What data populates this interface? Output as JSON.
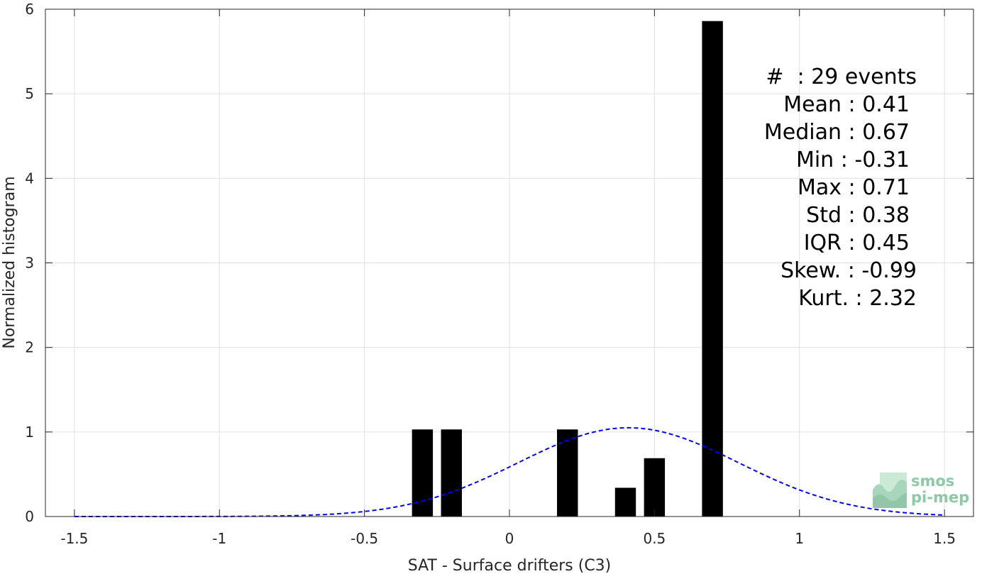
{
  "chart_data": {
    "type": "bar",
    "xlabel": "SAT - Surface drifters (C3)",
    "ylabel": "Normalized histogram",
    "xlim": [
      -1.6,
      1.6
    ],
    "ylim": [
      0,
      6
    ],
    "xticks": [
      -1.5,
      -1,
      -0.5,
      0,
      0.5,
      1,
      1.5
    ],
    "xtick_labels": [
      "-1.5",
      "-1",
      "-0.5",
      "0",
      "0.5",
      "1",
      "1.5"
    ],
    "yticks": [
      0,
      1,
      2,
      3,
      4,
      5,
      6
    ],
    "ytick_labels": [
      "0",
      "1",
      "2",
      "3",
      "4",
      "5",
      "6"
    ],
    "grid": true,
    "bar_color": "#000000",
    "bin_width": 0.1,
    "bars": [
      {
        "x": -0.3,
        "value": 1.03
      },
      {
        "x": -0.2,
        "value": 1.03
      },
      {
        "x": 0.2,
        "value": 1.03
      },
      {
        "x": 0.4,
        "value": 0.34
      },
      {
        "x": 0.5,
        "value": 0.69
      },
      {
        "x": 0.7,
        "value": 5.86
      }
    ],
    "fit_curve": {
      "type": "gaussian",
      "mean": 0.41,
      "std": 0.38,
      "x_range": [
        -1.5,
        1.5
      ],
      "color": "#0000ff",
      "style": "dashed"
    },
    "annotation_lines": [
      "#  : 29 events",
      "Mean : 0.41",
      "Median : 0.67",
      "Min : -0.31",
      "Max : 0.71",
      "Std : 0.38",
      "IQR : 0.45",
      "Skew. : -0.99",
      "Kurt. : 2.32"
    ]
  },
  "logo": {
    "line1": "smos",
    "line2": "pi-mep",
    "color": "#8cc9a6",
    "icon": "wave-logo-icon"
  }
}
